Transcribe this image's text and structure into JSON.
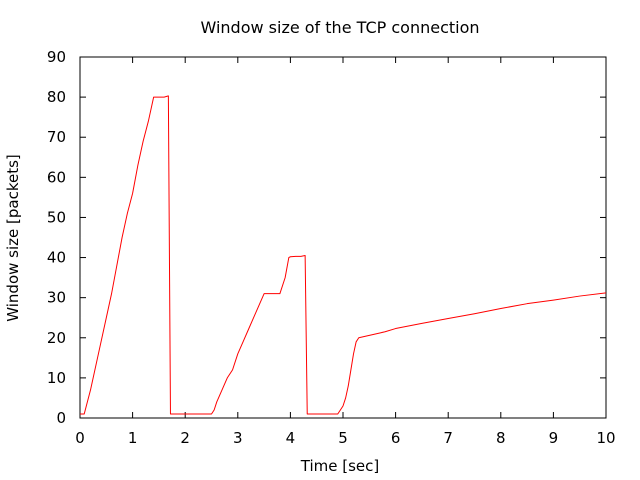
{
  "chart_data": {
    "type": "line",
    "title": "Window size of the TCP connection",
    "xlabel": "Time [sec]",
    "ylabel": "Window size [packets]",
    "xlim": [
      0,
      10
    ],
    "ylim": [
      0,
      90
    ],
    "xticks": [
      0,
      1,
      2,
      3,
      4,
      5,
      6,
      7,
      8,
      9,
      10
    ],
    "yticks": [
      0,
      10,
      20,
      30,
      40,
      50,
      60,
      70,
      80,
      90
    ],
    "grid": false,
    "legend": "none",
    "series": [
      {
        "color": "#ff0000",
        "x": [
          0.0,
          0.08,
          0.2,
          0.35,
          0.5,
          0.6,
          0.7,
          0.8,
          0.9,
          1.0,
          1.1,
          1.2,
          1.3,
          1.4,
          1.5,
          1.6,
          1.68,
          1.72,
          1.8,
          2.0,
          2.2,
          2.4,
          2.5,
          2.55,
          2.6,
          2.7,
          2.8,
          2.9,
          3.0,
          3.1,
          3.2,
          3.3,
          3.4,
          3.5,
          3.6,
          3.7,
          3.8,
          3.9,
          3.97,
          4.0,
          4.1,
          4.2,
          4.28,
          4.32,
          4.4,
          4.6,
          4.8,
          4.9,
          5.0,
          5.05,
          5.1,
          5.15,
          5.2,
          5.25,
          5.3,
          5.5,
          5.7,
          5.8,
          6.0,
          6.5,
          7.0,
          7.5,
          8.0,
          8.5,
          9.0,
          9.5,
          10.0
        ],
        "y": [
          1,
          1,
          7,
          16,
          25,
          31,
          38,
          45,
          51,
          56,
          63,
          69,
          74,
          80,
          80,
          80,
          80.3,
          1,
          1,
          1,
          1,
          1,
          1,
          2,
          4,
          7,
          10,
          12,
          16,
          19,
          22,
          25,
          28,
          31,
          31,
          31,
          31,
          35,
          40,
          40.2,
          40.3,
          40.3,
          40.5,
          1,
          1,
          1,
          1,
          1,
          3,
          5,
          8,
          12,
          16,
          19,
          20,
          20.6,
          21.2,
          21.5,
          22.3,
          23.6,
          24.8,
          26,
          27.3,
          28.5,
          29.4,
          30.4,
          31.2
        ]
      }
    ]
  }
}
